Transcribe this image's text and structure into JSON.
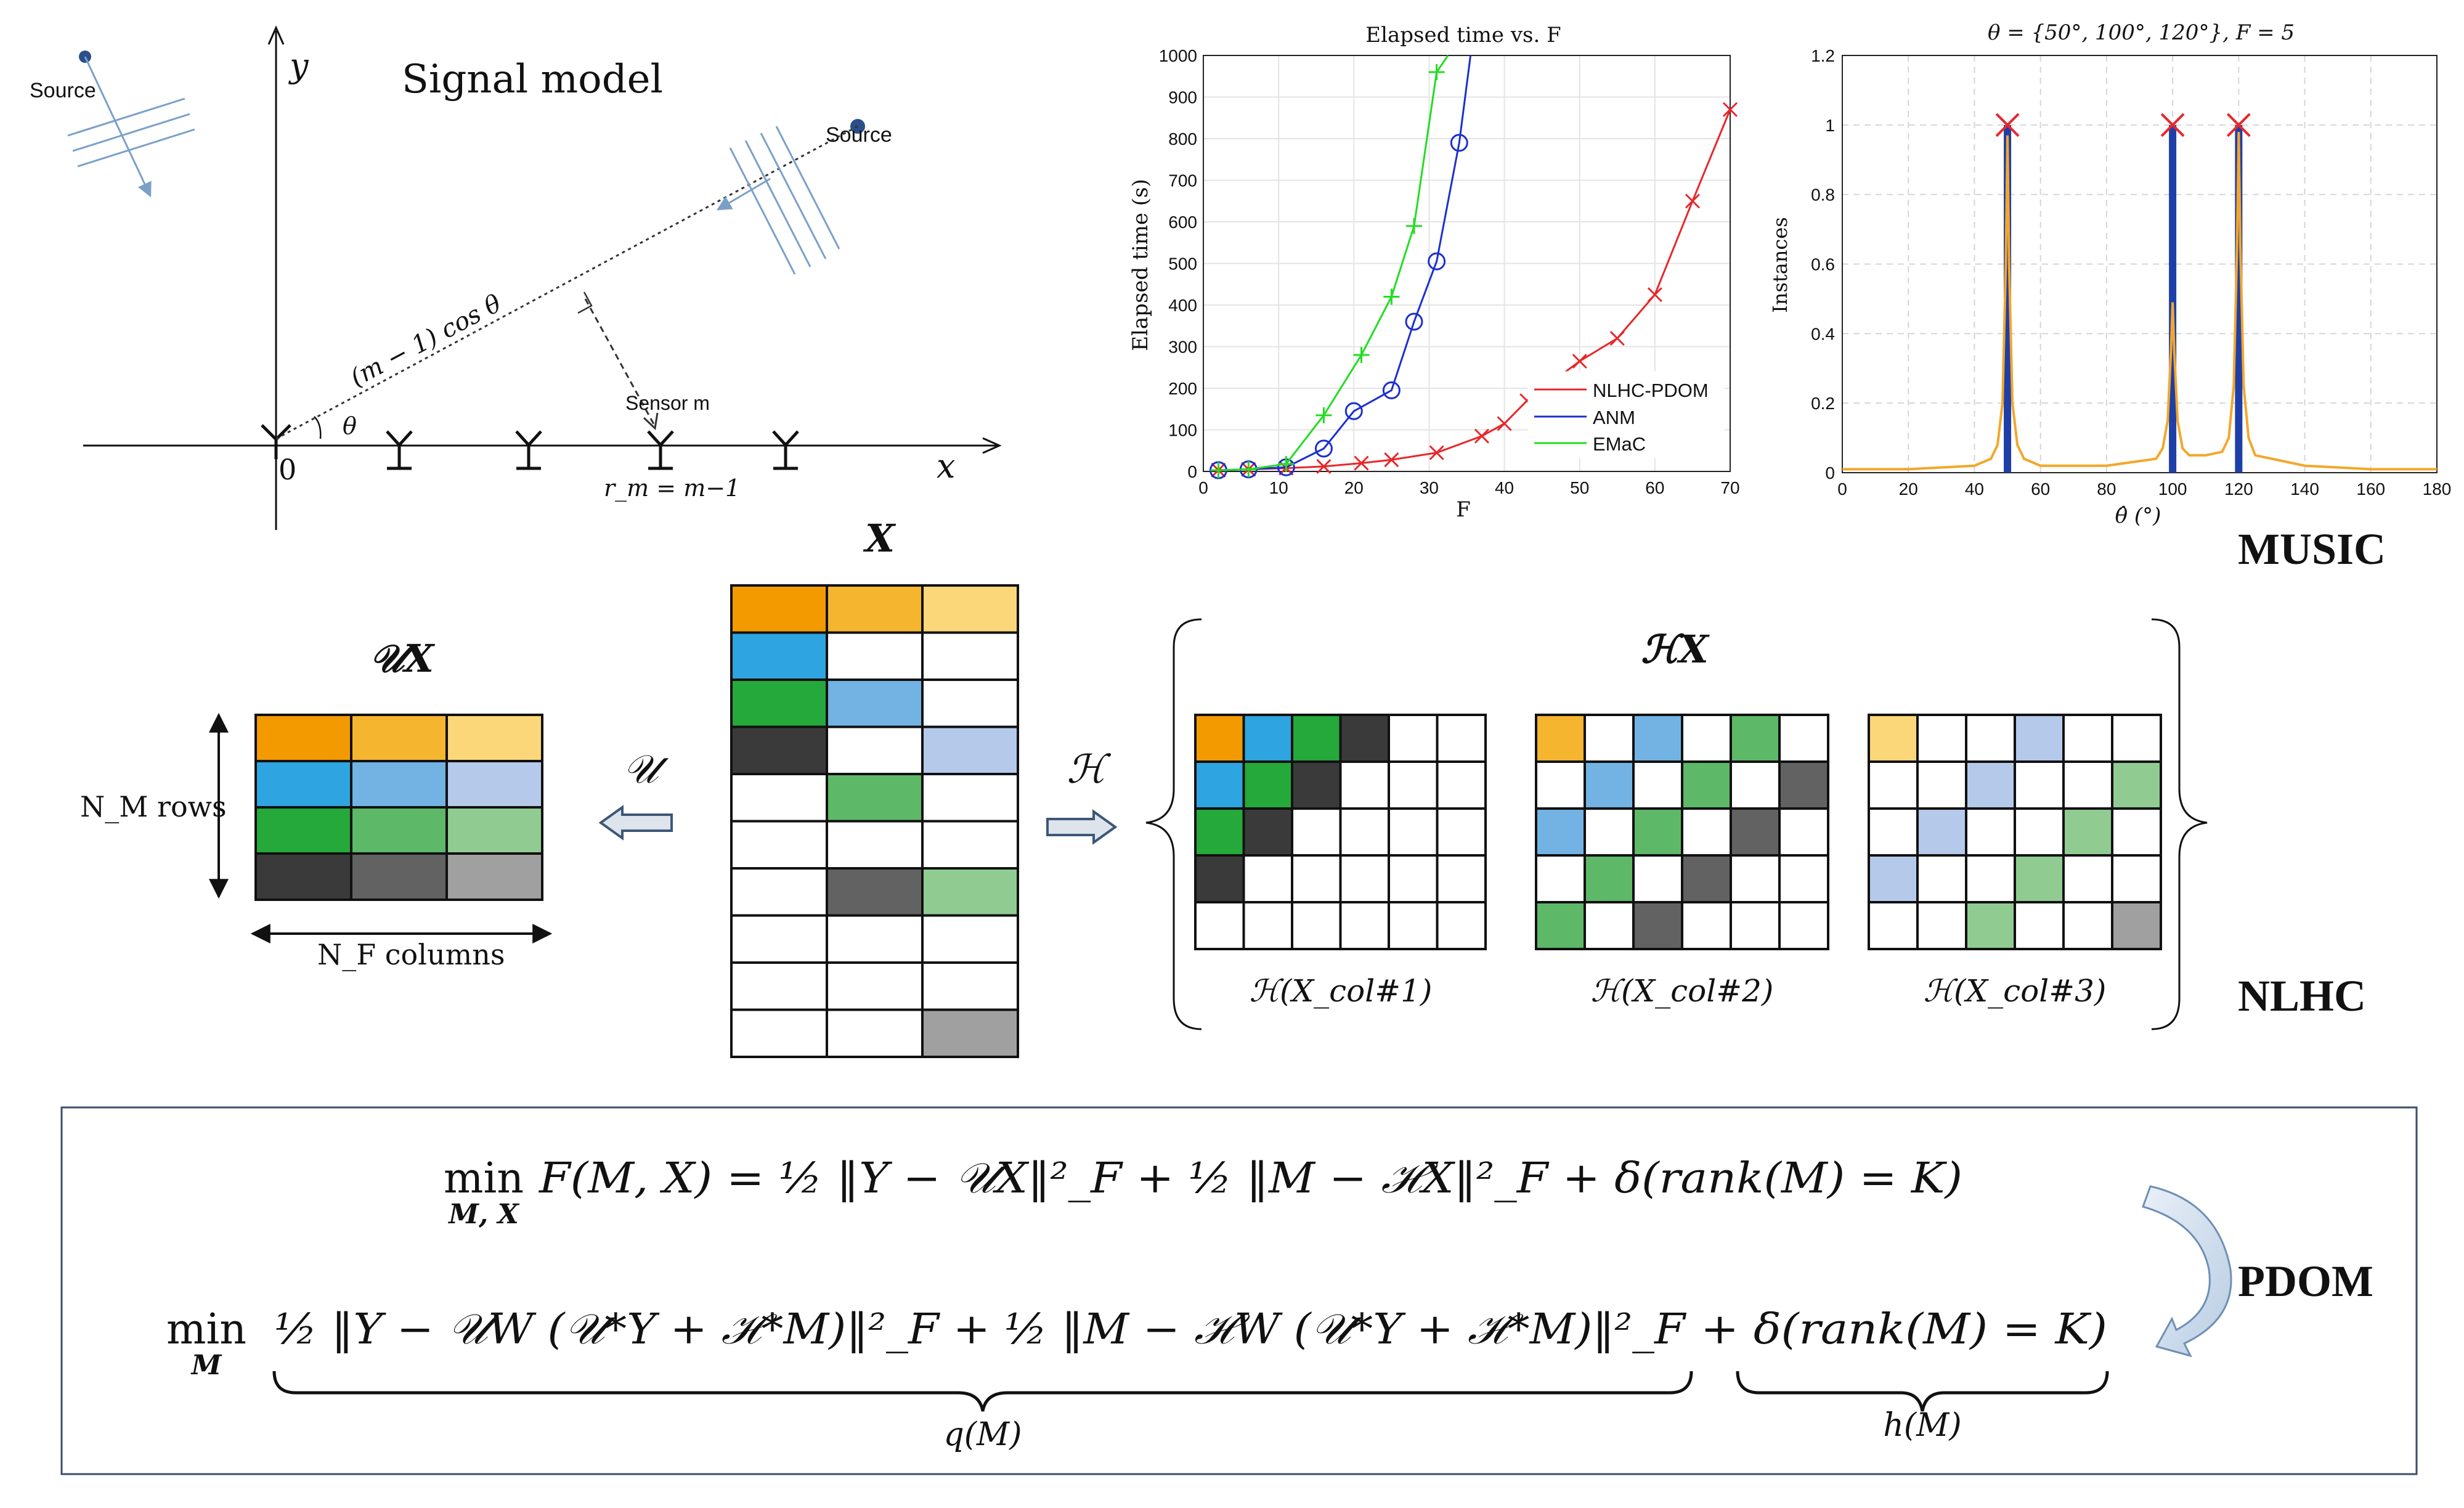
{
  "signal_model": {
    "title": "Signal model",
    "source_left": "Source",
    "source_right": "Source",
    "y_axis": "y",
    "x_axis": "x",
    "origin": "0",
    "angle": "θ",
    "projection": "(m − 1) cos θ",
    "sensor": "Sensor m",
    "rm": "r_m = m−1"
  },
  "elapsed_chart": {
    "type": "line",
    "title": "Elapsed time vs. F",
    "xlabel": "F",
    "ylabel": "Elapsed time (s)",
    "xlim": [
      0,
      70
    ],
    "ylim": [
      0,
      1000
    ],
    "xticks": [
      "0",
      "10",
      "20",
      "30",
      "40",
      "50",
      "60",
      "70"
    ],
    "yticks": [
      "0",
      "100",
      "200",
      "300",
      "400",
      "500",
      "600",
      "700",
      "800",
      "900",
      "1000"
    ],
    "legend_position": "bottom-right",
    "series": [
      {
        "name": "NLHC-PDOM",
        "color": "#e8262a",
        "marker": "x",
        "x": [
          2,
          6,
          11,
          16,
          21,
          25,
          31,
          37,
          40,
          43,
          50,
          55,
          60,
          65,
          70
        ],
        "y": [
          3,
          5,
          8,
          12,
          20,
          28,
          45,
          85,
          115,
          170,
          265,
          320,
          425,
          650,
          870
        ]
      },
      {
        "name": "ANM",
        "color": "#1c2fd0",
        "marker": "o",
        "x": [
          2,
          6,
          11,
          16,
          20,
          25,
          28,
          31,
          34,
          35.5
        ],
        "y": [
          3,
          5,
          10,
          55,
          145,
          195,
          360,
          505,
          790,
          1000
        ]
      },
      {
        "name": "EMaC",
        "color": "#22dd22",
        "marker": "+",
        "x": [
          2,
          6,
          11,
          16,
          21,
          25,
          28,
          31,
          32.5
        ],
        "y": [
          3,
          5,
          18,
          135,
          280,
          420,
          590,
          960,
          1000
        ]
      }
    ]
  },
  "music_chart": {
    "type": "line",
    "title": "θ = {50°, 100°, 120°}, F = 5",
    "xlabel": "θ̂ (°)",
    "ylabel": "Instances",
    "xlim": [
      0,
      180
    ],
    "ylim": [
      0,
      1.2
    ],
    "xticks": [
      "0",
      "20",
      "40",
      "60",
      "80",
      "100",
      "120",
      "140",
      "160",
      "180"
    ],
    "yticks": [
      "0",
      "0.2",
      "0.4",
      "0.6",
      "0.8",
      "1",
      "1.2"
    ],
    "true_doas": [
      50,
      100,
      120
    ],
    "bars": [
      {
        "x": 50,
        "value": 1.0
      },
      {
        "x": 100,
        "value": 1.0
      },
      {
        "x": 120,
        "value": 1.0
      }
    ],
    "spectrum": {
      "x": [
        0,
        20,
        40,
        45,
        47,
        48.5,
        49.5,
        50,
        50.5,
        51.5,
        53,
        55,
        60,
        80,
        95,
        97,
        98.5,
        99.5,
        100,
        100.5,
        101.5,
        103,
        105,
        110,
        115,
        117,
        118.5,
        119.5,
        120,
        120.5,
        121.5,
        123,
        125,
        140,
        160,
        180
      ],
      "y": [
        0.01,
        0.01,
        0.02,
        0.04,
        0.08,
        0.2,
        0.6,
        0.97,
        0.6,
        0.2,
        0.08,
        0.04,
        0.02,
        0.02,
        0.04,
        0.07,
        0.15,
        0.35,
        0.49,
        0.35,
        0.15,
        0.07,
        0.05,
        0.05,
        0.06,
        0.1,
        0.25,
        0.65,
        0.98,
        0.65,
        0.25,
        0.1,
        0.05,
        0.02,
        0.01,
        0.01
      ]
    },
    "label": "MUSIC"
  },
  "matrices": {
    "x_title": "X",
    "ux_title": "𝒰X",
    "hx_title": "ℋX",
    "u_op": "𝒰",
    "h_op": "ℋ",
    "rows_label": "N_M rows",
    "cols_label": "N_F columns",
    "h_col1": "ℋ(X_col#1)",
    "h_col2": "ℋ(X_col#2)",
    "h_col3": "ℋ(X_col#3)",
    "nlhc_label": "NLHC"
  },
  "colors": {
    "orange": [
      "#f39a00",
      "#f5b52e",
      "#fbd77a"
    ],
    "blue": [
      "#2ea4e0",
      "#72b3e4",
      "#b5c9ea"
    ],
    "green": [
      "#24a93a",
      "#5db868",
      "#90cc92"
    ],
    "gray": [
      "#3a3a3a",
      "#626262",
      "#a0a0a0"
    ]
  },
  "optimization": {
    "line1_left": "min",
    "line1_sub": "M, X",
    "line1_body": "F(M, X) = ½ ‖Y − 𝒰X‖²_F + ½ ‖M − ℋX‖²_F + δ(rank(M) = K)",
    "line2_left": "min",
    "line2_sub": "M",
    "line2_q": "½ ‖Y − 𝒰W (𝒰*Y + ℋ*M)‖²_F + ½ ‖M − ℋW (𝒰*Y + ℋ*M)‖²_F",
    "line2_h": "+ δ(rank(M) = K)",
    "q_label": "q(M)",
    "h_label": "h(M)",
    "pdom_label": "PDOM"
  }
}
